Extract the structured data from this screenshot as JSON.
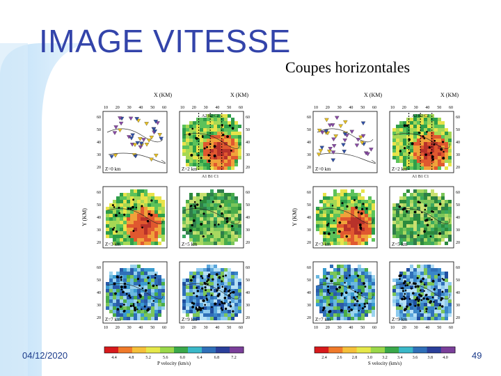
{
  "slide": {
    "title": "IMAGE VITESSE",
    "subtitle": "Coupes horizontales",
    "date": "04/12/2020",
    "page_number": "49"
  },
  "colors": {
    "title": "#3344aa",
    "accent_arc": "#cfe8fb",
    "footer_text": "#1a3a8a"
  },
  "figure_left": {
    "x_axis_title": "X (KM)",
    "y_axis_title": "Y (KM)",
    "x_ticks": [
      "10",
      "20",
      "30",
      "40",
      "50",
      "60"
    ],
    "y_ticks": [
      "60",
      "50",
      "40",
      "30",
      "20"
    ],
    "panels": [
      {
        "depth": "Z=0 km",
        "palette": "stations"
      },
      {
        "depth": "Z=2 km",
        "palette": "warm",
        "profile_top": "A2 B2 C2",
        "profile_bottom": "A1 B1 C1"
      },
      {
        "depth": "Z=3 km",
        "palette": "warm"
      },
      {
        "depth": "Z=5 km",
        "palette": "green"
      },
      {
        "depth": "Z=7 km",
        "palette": "blue"
      },
      {
        "depth": "Z=9 km",
        "palette": "deepblue"
      }
    ],
    "colorbar_ticks": [
      "4.4",
      "4.8",
      "5.2",
      "5.6",
      "6.0",
      "6.4",
      "6.8",
      "7.2"
    ],
    "colorbar_label": "P velocity (km/s)"
  },
  "figure_right": {
    "x_axis_title": "X (KM)",
    "y_axis_title": "Y (KM)",
    "x_ticks": [
      "10",
      "20",
      "30",
      "40",
      "50",
      "60"
    ],
    "y_ticks": [
      "60",
      "50",
      "40",
      "30",
      "20"
    ],
    "panels": [
      {
        "depth": "Z=0 km",
        "palette": "stations"
      },
      {
        "depth": "Z=2 km",
        "palette": "warm",
        "profile_top": "A2 B2 C2",
        "profile_bottom": "A1 B1 C1"
      },
      {
        "depth": "Z=3 km",
        "palette": "warm"
      },
      {
        "depth": "Z=5 km",
        "palette": "green"
      },
      {
        "depth": "Z=7 km",
        "palette": "blue"
      },
      {
        "depth": "Z=9 km",
        "palette": "deepblue"
      }
    ],
    "colorbar_ticks": [
      "2.4",
      "2.6",
      "2.8",
      "3.0",
      "3.2",
      "3.4",
      "3.6",
      "3.8",
      "4.0"
    ],
    "colorbar_label": "S velocity (km/s)"
  }
}
